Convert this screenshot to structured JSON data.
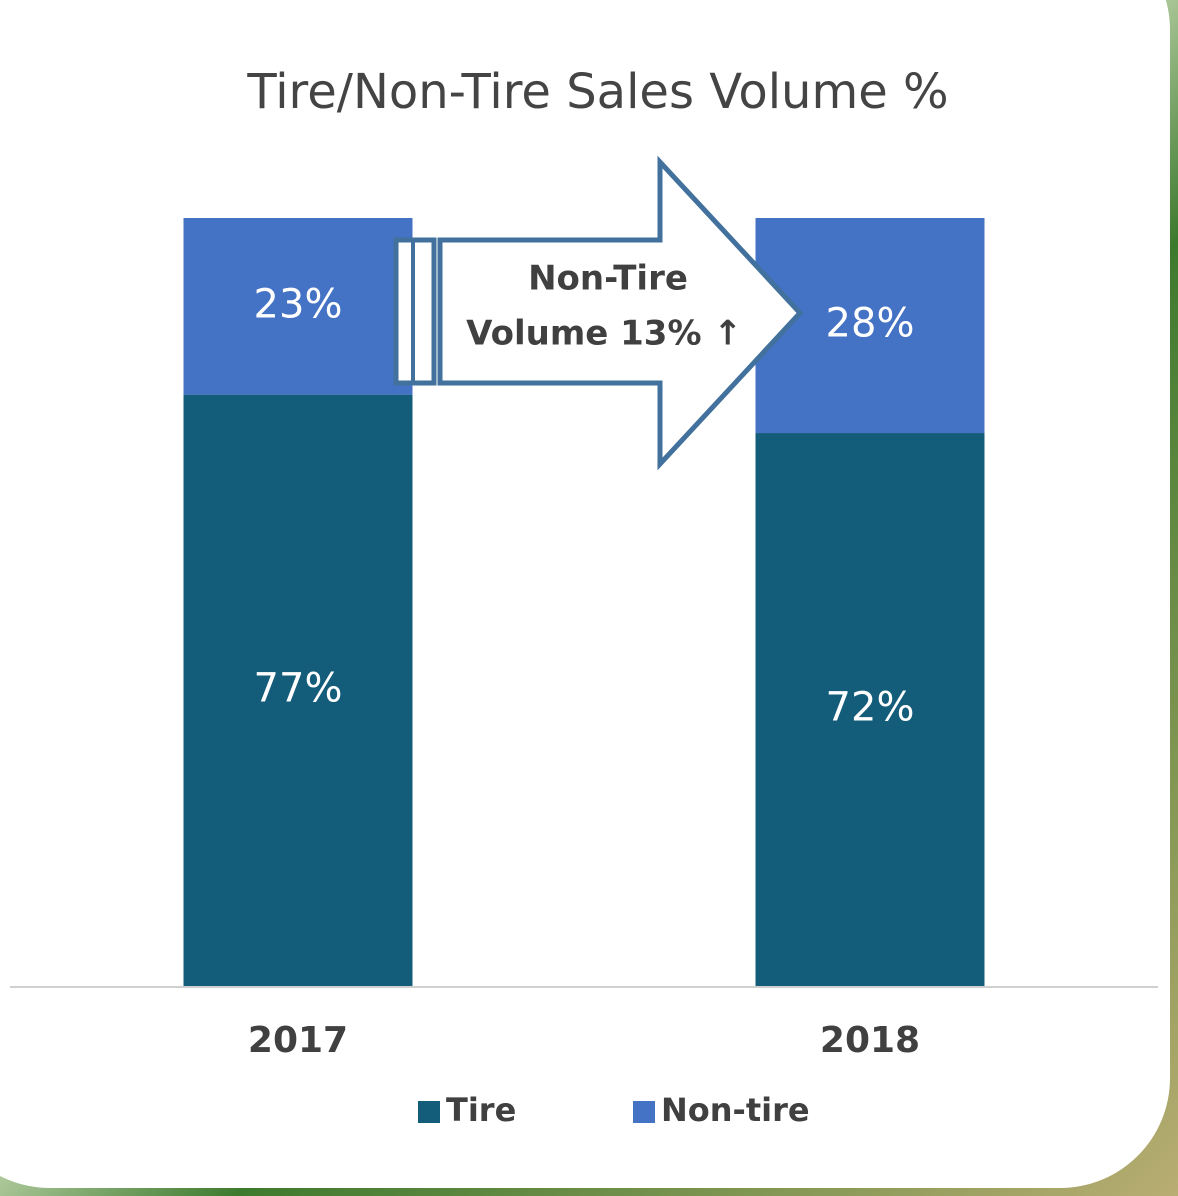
{
  "chart_data": {
    "type": "stacked_bar",
    "title": "Tire/Non-Tire Sales Volume %",
    "categories": [
      "2017",
      "2018"
    ],
    "series": [
      {
        "name": "Tire",
        "color": "#135c7a",
        "values": [
          77,
          72
        ],
        "value_labels": [
          "77%",
          "72%"
        ]
      },
      {
        "name": "Non-tire",
        "color": "#4472c4",
        "values": [
          23,
          28
        ],
        "value_labels": [
          "23%",
          "28%"
        ]
      }
    ],
    "ylim": [
      0,
      100
    ],
    "annotation": [
      "Non-Tire",
      "Volume 13% ↑"
    ],
    "legend": "bottom"
  }
}
